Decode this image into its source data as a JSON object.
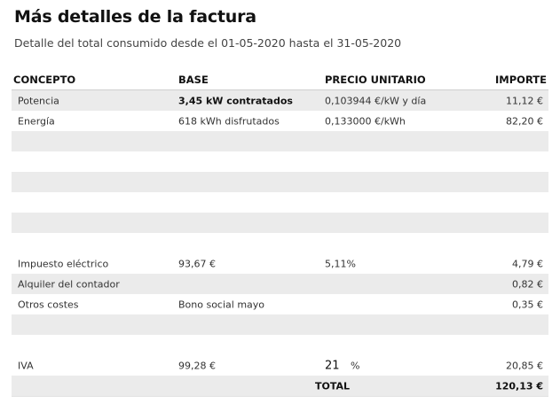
{
  "title": "Más detalles de la factura",
  "subtitle": "Detalle del total consumido desde el 01-05-2020 hasta el 31-05-2020",
  "headers": {
    "concept": "CONCEPTO",
    "base": "BASE",
    "unit_price": "PRECIO UNITARIO",
    "amount": "IMPORTE"
  },
  "rows": [
    {
      "concept": "Potencia",
      "base": "3,45 kW contratados",
      "unit_price": "0,103944 €/kW y día",
      "amount": "11,12 €"
    },
    {
      "concept": "Energía",
      "base": "618 kWh disfrutados",
      "unit_price": "0,133000 €/kWh",
      "amount": "82,20 €"
    },
    {
      "concept": "",
      "base": "",
      "unit_price": "",
      "amount": ""
    },
    {
      "concept": "",
      "base": "",
      "unit_price": "",
      "amount": ""
    },
    {
      "concept": "",
      "base": "",
      "unit_price": "",
      "amount": ""
    },
    {
      "concept": "",
      "base": "",
      "unit_price": "",
      "amount": ""
    },
    {
      "concept": "",
      "base": "",
      "unit_price": "",
      "amount": ""
    },
    {
      "concept": "",
      "base": "",
      "unit_price": "",
      "amount": ""
    },
    {
      "concept": "Impuesto eléctrico",
      "base": "93,67 €",
      "unit_price": "5,11%",
      "amount": "4,79 €"
    },
    {
      "concept": "Alquiler del contador",
      "base": "",
      "unit_price": "",
      "amount": "0,82 €"
    },
    {
      "concept": "Otros costes",
      "base": "Bono social mayo",
      "unit_price": "",
      "amount": "0,35 €"
    },
    {
      "concept": "",
      "base": "",
      "unit_price": "",
      "amount": ""
    },
    {
      "concept": "",
      "base": "",
      "unit_price": "",
      "amount": ""
    },
    {
      "concept": "IVA",
      "base": "99,28 €",
      "vat_rate": "21",
      "vat_unit": "%",
      "amount": "20,85 €"
    }
  ],
  "total": {
    "label": "TOTAL",
    "amount": "120,13 €"
  }
}
